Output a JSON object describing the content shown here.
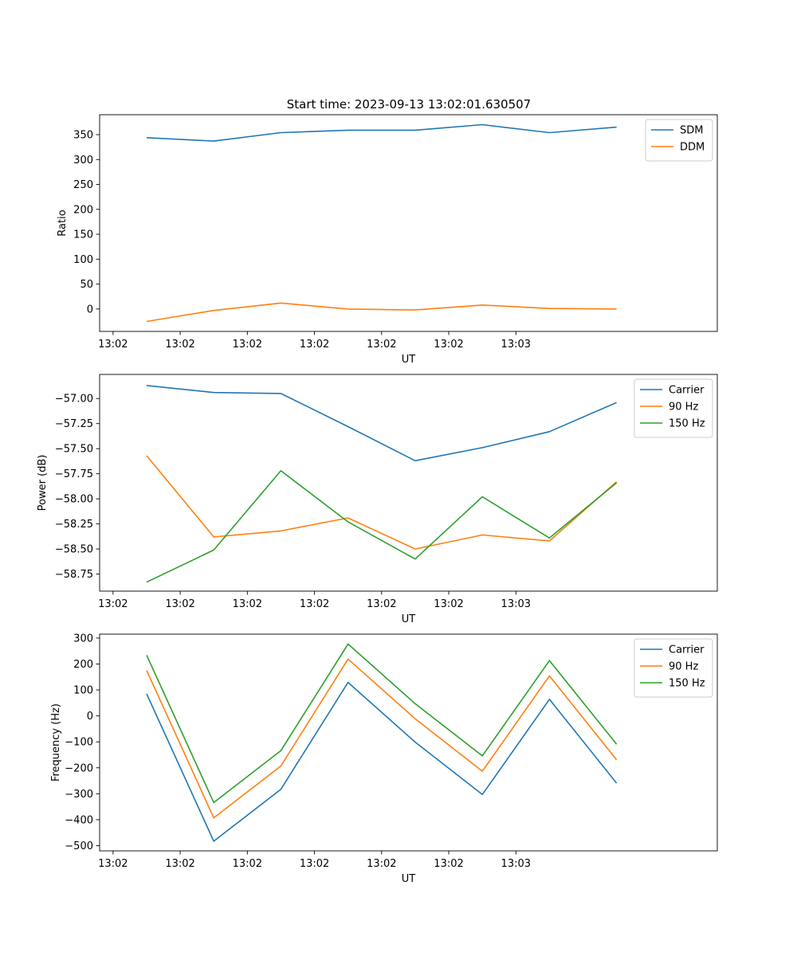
{
  "figure": {
    "title": "Start time: 2023-09-13 13:02:01.630507"
  },
  "chart_data": [
    {
      "type": "line",
      "xlabel": "UT",
      "ylabel": "Ratio",
      "x_ticks": [
        "13:02",
        "13:02",
        "13:02",
        "13:02",
        "13:02",
        "13:02",
        "13:03"
      ],
      "xlim": [
        -0.2,
        9.0
      ],
      "ylim": [
        -45,
        390
      ],
      "y_ticks": [
        0,
        50,
        100,
        150,
        200,
        250,
        300,
        350
      ],
      "y_tick_labels": [
        "0",
        "50",
        "100",
        "150",
        "200",
        "250",
        "300",
        "350"
      ],
      "legend": "top-right",
      "x": [
        0.5,
        1.5,
        2.5,
        3.5,
        4.5,
        5.5,
        6.5,
        7.5
      ],
      "series": [
        {
          "name": "SDM",
          "color": "#1f77b4",
          "values": [
            344,
            337,
            354,
            359,
            359,
            370,
            354,
            365
          ]
        },
        {
          "name": "DDM",
          "color": "#ff7f0e",
          "values": [
            -25,
            -3,
            12,
            0,
            -2,
            8,
            1,
            0
          ]
        }
      ]
    },
    {
      "type": "line",
      "xlabel": "UT",
      "ylabel": "Power (dB)",
      "x_ticks": [
        "13:02",
        "13:02",
        "13:02",
        "13:02",
        "13:02",
        "13:02",
        "13:03"
      ],
      "xlim": [
        -0.2,
        9.0
      ],
      "ylim": [
        -58.92,
        -56.76
      ],
      "y_ticks": [
        -58.75,
        -58.5,
        -58.25,
        -58.0,
        -57.75,
        -57.5,
        -57.25,
        -57.0
      ],
      "y_tick_labels": [
        "−58.75",
        "−58.50",
        "−58.25",
        "−58.00",
        "−57.75",
        "−57.50",
        "−57.25",
        "−57.00"
      ],
      "legend": "top-right",
      "x": [
        0.5,
        1.5,
        2.5,
        3.5,
        4.5,
        5.5,
        6.5,
        7.5
      ],
      "series": [
        {
          "name": "Carrier",
          "color": "#1f77b4",
          "values": [
            -56.87,
            -56.94,
            -56.95,
            -57.28,
            -57.62,
            -57.49,
            -57.33,
            -57.04
          ]
        },
        {
          "name": "90 Hz",
          "color": "#ff7f0e",
          "values": [
            -57.57,
            -58.38,
            -58.32,
            -58.19,
            -58.5,
            -58.36,
            -58.42,
            -57.83
          ]
        },
        {
          "name": "150 Hz",
          "color": "#2ca02c",
          "values": [
            -58.83,
            -58.51,
            -57.72,
            -58.23,
            -58.6,
            -57.98,
            -58.39,
            -57.84
          ]
        }
      ]
    },
    {
      "type": "line",
      "xlabel": "UT",
      "ylabel": "Frequency (Hz)",
      "x_ticks": [
        "13:02",
        "13:02",
        "13:02",
        "13:02",
        "13:02",
        "13:02",
        "13:03"
      ],
      "xlim": [
        -0.2,
        9.0
      ],
      "ylim": [
        -520,
        315
      ],
      "y_ticks": [
        -500,
        -400,
        -300,
        -200,
        -100,
        0,
        100,
        200,
        300
      ],
      "y_tick_labels": [
        "−500",
        "−400",
        "−300",
        "−200",
        "−100",
        "0",
        "100",
        "200",
        "300"
      ],
      "legend": "top-right",
      "x": [
        0.5,
        1.5,
        2.5,
        3.5,
        4.5,
        5.5,
        6.5,
        7.5
      ],
      "series": [
        {
          "name": "Carrier",
          "color": "#1f77b4",
          "values": [
            85,
            -483,
            -283,
            129,
            -101,
            -303,
            64,
            -259
          ]
        },
        {
          "name": "90 Hz",
          "color": "#ff7f0e",
          "values": [
            175,
            -393,
            -193,
            219,
            -11,
            -213,
            154,
            -169
          ]
        },
        {
          "name": "150 Hz",
          "color": "#2ca02c",
          "values": [
            234,
            -334,
            -134,
            277,
            47,
            -154,
            213,
            -109
          ]
        }
      ]
    }
  ]
}
